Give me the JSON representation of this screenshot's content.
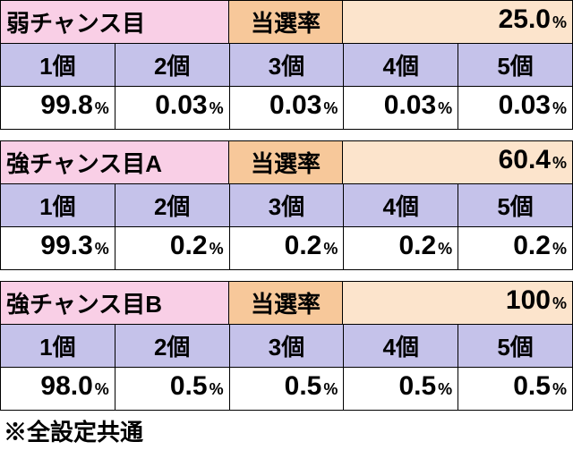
{
  "colors": {
    "pink": "#f9cfe6",
    "orange": "#f7c89a",
    "peach": "#fce4cc",
    "lavender": "#c5c2ea",
    "white": "#ffffff"
  },
  "sections": [
    {
      "title": "弱チャンス目",
      "winrate_label": "当選率",
      "winrate_value": "25.0",
      "counts": [
        "1個",
        "2個",
        "3個",
        "4個",
        "5個"
      ],
      "values": [
        "99.8",
        "0.03",
        "0.03",
        "0.03",
        "0.03"
      ]
    },
    {
      "title": "強チャンス目A",
      "winrate_label": "当選率",
      "winrate_value": "60.4",
      "counts": [
        "1個",
        "2個",
        "3個",
        "4個",
        "5個"
      ],
      "values": [
        "99.3",
        "0.2",
        "0.2",
        "0.2",
        "0.2"
      ]
    },
    {
      "title": "強チャンス目B",
      "winrate_label": "当選率",
      "winrate_value": "100",
      "counts": [
        "1個",
        "2個",
        "3個",
        "4個",
        "5個"
      ],
      "values": [
        "98.0",
        "0.5",
        "0.5",
        "0.5",
        "0.5"
      ]
    }
  ],
  "footer": "※全設定共通"
}
